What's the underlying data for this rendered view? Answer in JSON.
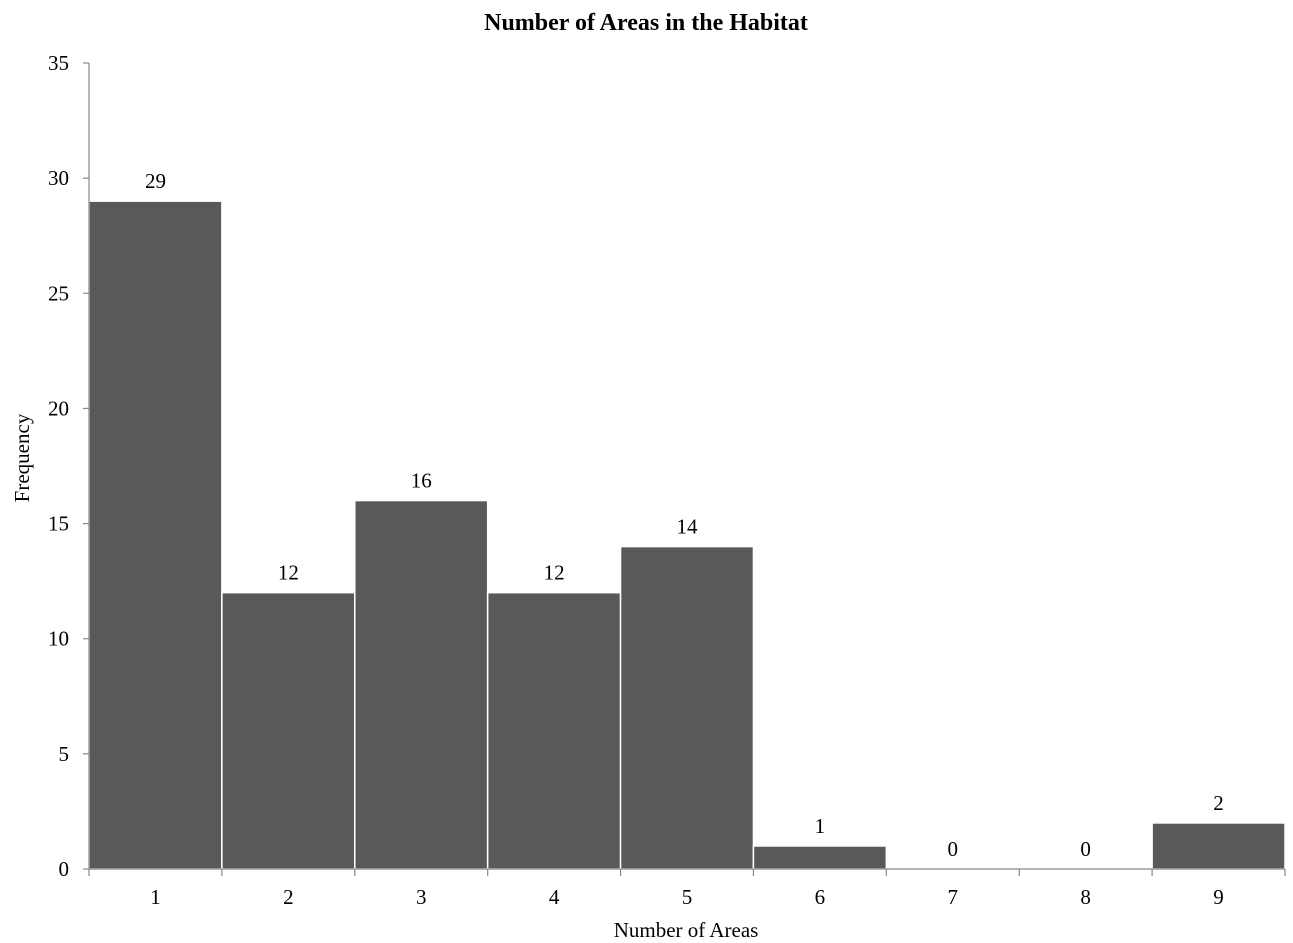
{
  "chart_data": {
    "type": "bar",
    "title": "Number of Areas in the Habitat",
    "xlabel": "Number of Areas",
    "ylabel": "Frequency",
    "categories": [
      "1",
      "2",
      "3",
      "4",
      "5",
      "6",
      "7",
      "8",
      "9"
    ],
    "values": [
      29,
      12,
      16,
      12,
      14,
      1,
      0,
      0,
      2
    ],
    "data_labels": [
      "29",
      "12",
      "16",
      "12",
      "14",
      "1",
      "0",
      "0",
      "2"
    ],
    "ylim": [
      0,
      35
    ],
    "yticks": [
      0,
      5,
      10,
      15,
      20,
      25,
      30,
      35
    ],
    "grid": false,
    "legend": "none",
    "bar_color": "#595959",
    "bar_edge_color": "#ffffff",
    "axis_color": "#888888"
  }
}
